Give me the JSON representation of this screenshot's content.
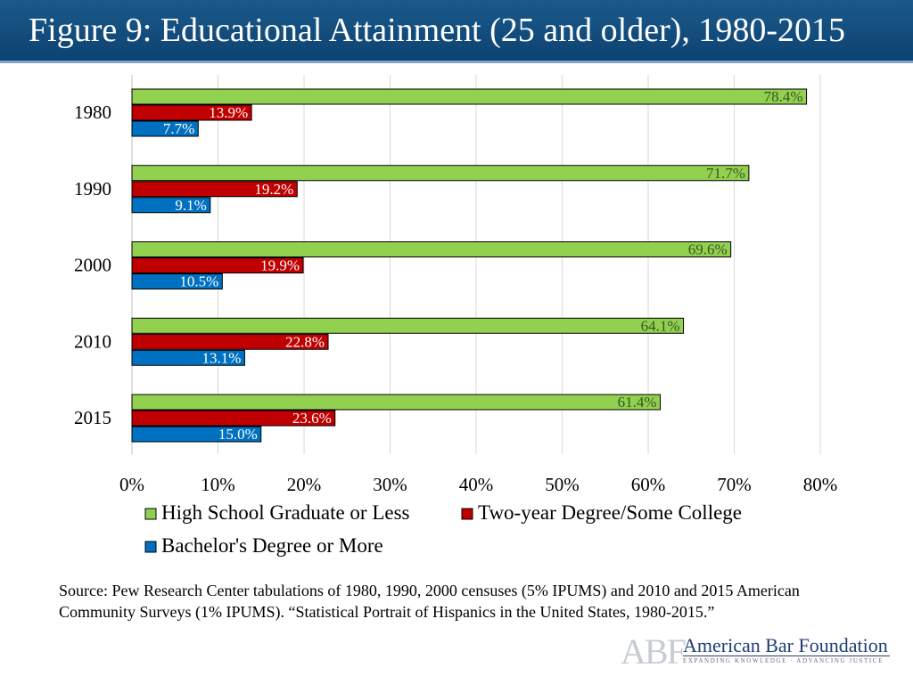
{
  "title": "Figure 9: Educational Attainment (25 and older), 1980-2015",
  "source": "Source: Pew Research Center tabulations of 1980, 1990, 2000 censuses (5% IPUMS) and 2010 and 2015 American Community Surveys (1% IPUMS). “Statistical Portrait of Hispanics in the United States, 1980-2015.”",
  "logo": {
    "mark": "ABF",
    "name": "American Bar Foundation",
    "tagline": "EXPANDING KNOWLEDGE · ADVANCING JUSTICE"
  },
  "chart_data": {
    "type": "bar",
    "orientation": "horizontal",
    "categories": [
      "1980",
      "1990",
      "2000",
      "2010",
      "2015"
    ],
    "series": [
      {
        "name": "High School Graduate or Less",
        "color": "#92d050",
        "values": [
          78.4,
          71.7,
          69.6,
          64.1,
          61.4
        ],
        "labels": [
          "78.4%",
          "71.7%",
          "69.6%",
          "64.1%",
          "61.4%"
        ],
        "label_color": "#375623"
      },
      {
        "name": "Two-year Degree/Some College",
        "color": "#c00000",
        "values": [
          13.9,
          19.2,
          19.9,
          22.8,
          23.6
        ],
        "labels": [
          "13.9%",
          "19.2%",
          "19.9%",
          "22.8%",
          "23.6%"
        ],
        "label_color": "#ffffff"
      },
      {
        "name": "Bachelor's Degree or More",
        "color": "#0070c0",
        "values": [
          7.7,
          9.1,
          10.5,
          13.1,
          15.0
        ],
        "labels": [
          "7.7%",
          "9.1%",
          "10.5%",
          "13.1%",
          "15.0%"
        ],
        "label_color": "#ffffff"
      }
    ],
    "xlim": [
      0,
      80
    ],
    "xticks": [
      "0%",
      "10%",
      "20%",
      "30%",
      "40%",
      "50%",
      "60%",
      "70%",
      "80%"
    ],
    "grid": true,
    "legend_position": "bottom"
  }
}
